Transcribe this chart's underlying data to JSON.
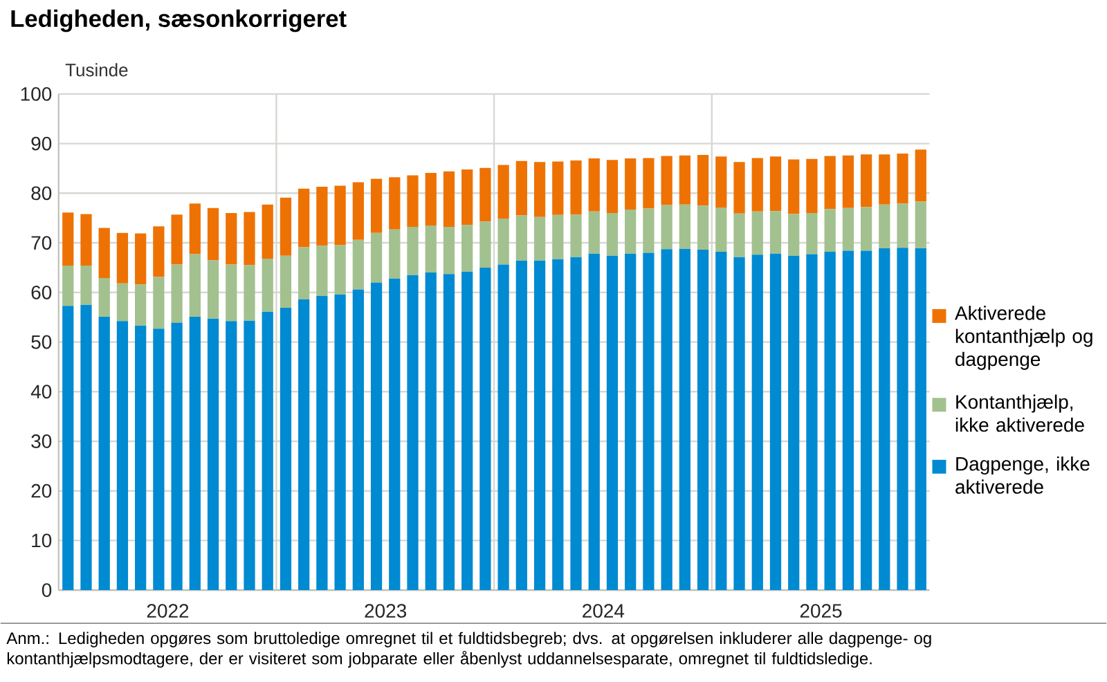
{
  "chart_data": {
    "type": "bar",
    "title": "Ledigheden, sæsonkorrigeret",
    "ylabel": "Tusinde",
    "stacked": true,
    "grid": true,
    "legend": "right",
    "x": [
      "2022-01",
      "2022-02",
      "2022-03",
      "2022-04",
      "2022-05",
      "2022-06",
      "2022-07",
      "2022-08",
      "2022-09",
      "2022-10",
      "2022-11",
      "2022-12",
      "2023-01",
      "2023-02",
      "2023-03",
      "2023-04",
      "2023-05",
      "2023-06",
      "2023-07",
      "2023-08",
      "2023-09",
      "2023-10",
      "2023-11",
      "2023-12",
      "2024-01",
      "2024-02",
      "2024-03",
      "2024-04",
      "2024-05",
      "2024-06",
      "2024-07",
      "2024-08",
      "2024-09",
      "2024-10",
      "2024-11",
      "2024-12",
      "2025-01",
      "2025-02",
      "2025-03",
      "2025-04",
      "2025-05",
      "2025-06",
      "2025-07",
      "2025-08",
      "2025-09",
      "2025-10",
      "2025-11",
      "2025-12"
    ],
    "xlim": [
      "2021-12-16",
      "2025-12-16"
    ],
    "xticks": [
      {
        "value": "2022-06-16",
        "label": "2022"
      },
      {
        "value": "2022-12-16",
        "label": null
      },
      {
        "value": "2023-06-16",
        "label": "2023"
      },
      {
        "value": "2023-12-16",
        "label": null
      },
      {
        "value": "2024-06-16",
        "label": "2024"
      },
      {
        "value": "2024-12-16",
        "label": null
      },
      {
        "value": "2025-06-16",
        "label": "2025"
      }
    ],
    "ylim": [
      0,
      100
    ],
    "yticks": [
      0,
      10,
      20,
      30,
      40,
      50,
      60,
      70,
      80,
      90,
      100
    ],
    "series": [
      {
        "name": "Dagpenge, ikke aktiverede",
        "color": "#008ad2",
        "values": [
          57.3,
          57.5,
          55.1,
          54.2,
          53.3,
          52.7,
          53.9,
          55.1,
          54.7,
          54.2,
          54.3,
          56.1,
          56.9,
          58.6,
          59.3,
          59.6,
          60.6,
          62.0,
          62.8,
          63.5,
          64.0,
          63.7,
          64.2,
          65.0,
          65.6,
          66.4,
          66.4,
          66.7,
          67.1,
          67.8,
          67.4,
          67.8,
          68.0,
          68.7,
          68.8,
          68.6,
          68.2,
          67.1,
          67.6,
          67.8,
          67.4,
          67.7,
          68.2,
          68.4,
          68.4,
          68.9,
          69.0,
          68.9
        ]
      },
      {
        "name": "Kontanthjælp, ikke aktiverede",
        "color": "#a2c18f",
        "values": [
          8.1,
          7.9,
          7.8,
          7.6,
          8.3,
          10.4,
          11.7,
          12.6,
          11.8,
          11.4,
          11.2,
          10.7,
          10.5,
          10.5,
          10.1,
          9.9,
          10.0,
          10.0,
          9.9,
          9.7,
          9.5,
          9.5,
          9.4,
          9.3,
          9.3,
          9.1,
          8.8,
          8.9,
          8.6,
          8.5,
          8.6,
          8.9,
          8.9,
          8.9,
          8.9,
          8.9,
          8.9,
          8.8,
          8.7,
          8.6,
          8.4,
          8.3,
          8.6,
          8.6,
          8.8,
          8.8,
          8.9,
          9.4
        ]
      },
      {
        "name": "Aktiverede kontanthjælp og dagpenge",
        "color": "#ee7203",
        "values": [
          10.7,
          10.4,
          10.1,
          10.2,
          10.3,
          10.2,
          10.1,
          10.2,
          10.5,
          10.4,
          10.7,
          10.9,
          11.7,
          11.8,
          11.9,
          12.0,
          11.6,
          10.9,
          10.5,
          10.4,
          10.6,
          11.2,
          11.2,
          10.8,
          10.8,
          11.0,
          11.1,
          10.8,
          10.9,
          10.7,
          10.7,
          10.3,
          10.2,
          9.9,
          9.9,
          10.2,
          10.3,
          10.4,
          10.8,
          11.0,
          11.0,
          10.9,
          10.7,
          10.6,
          10.6,
          10.1,
          10.1,
          10.5
        ]
      }
    ],
    "annotations": [
      "Anm.: Ledigheden opgøres som bruttoledige omregnet til et fuldtidsbegreb; dvs. at opgørelsen inkluderer alle dagpenge- og kontanthjælpsmodtagere, der er visiteret som jobparate eller åbenlyst uddannelsesparate, omregnet til fuldtidsledige."
    ]
  }
}
